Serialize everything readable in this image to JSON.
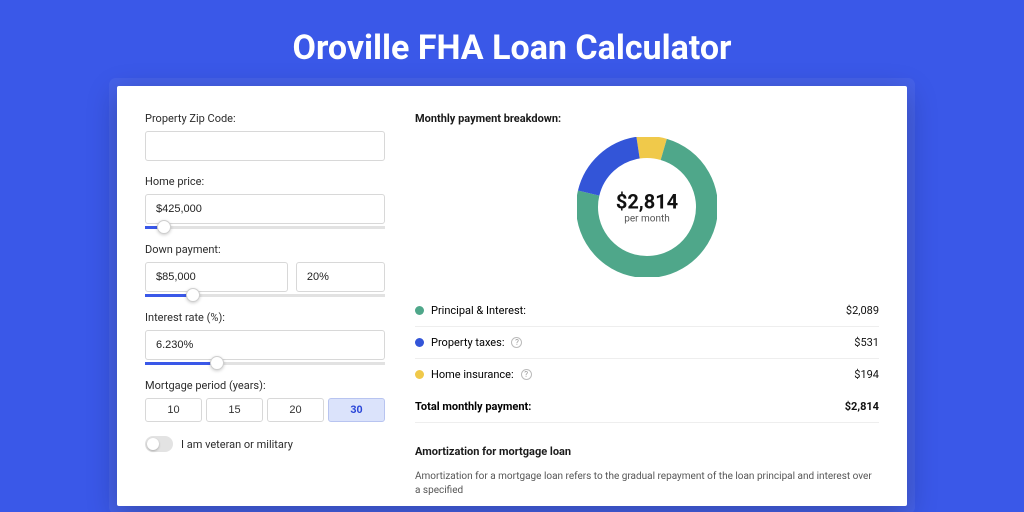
{
  "page": {
    "title": "Oroville FHA Loan Calculator",
    "background_color": "#3a58e8"
  },
  "form": {
    "zip": {
      "label": "Property Zip Code:",
      "value": ""
    },
    "home_price": {
      "label": "Home price:",
      "value": "$425,000",
      "slider_pct": 8
    },
    "down_payment": {
      "label": "Down payment:",
      "amount": "$85,000",
      "percent": "20%",
      "slider_pct": 20
    },
    "interest_rate": {
      "label": "Interest rate (%):",
      "value": "6.230%",
      "slider_pct": 30
    },
    "mortgage_period": {
      "label": "Mortgage period (years):",
      "options": [
        "10",
        "15",
        "20",
        "30"
      ],
      "selected": "30"
    },
    "veteran": {
      "label": "I am veteran or military",
      "checked": false
    }
  },
  "breakdown": {
    "title": "Monthly payment breakdown:",
    "donut": {
      "amount": "$2,814",
      "subtitle": "per month",
      "segments": [
        {
          "label": "Principal & Interest",
          "value": 2089,
          "color": "#4fa78a"
        },
        {
          "label": "Property taxes",
          "value": 531,
          "color": "#3355d8"
        },
        {
          "label": "Home insurance",
          "value": 194,
          "color": "#f0c94a"
        }
      ],
      "thickness": 22,
      "radius": 60
    },
    "rows": [
      {
        "color": "#4fa78a",
        "label": "Principal & Interest:",
        "value": "$2,089",
        "info": false
      },
      {
        "color": "#3355d8",
        "label": "Property taxes:",
        "value": "$531",
        "info": true
      },
      {
        "color": "#f0c94a",
        "label": "Home insurance:",
        "value": "$194",
        "info": true
      }
    ],
    "total": {
      "label": "Total monthly payment:",
      "value": "$2,814"
    }
  },
  "amortization": {
    "title": "Amortization for mortgage loan",
    "text": "Amortization for a mortgage loan refers to the gradual repayment of the loan principal and interest over a specified"
  }
}
